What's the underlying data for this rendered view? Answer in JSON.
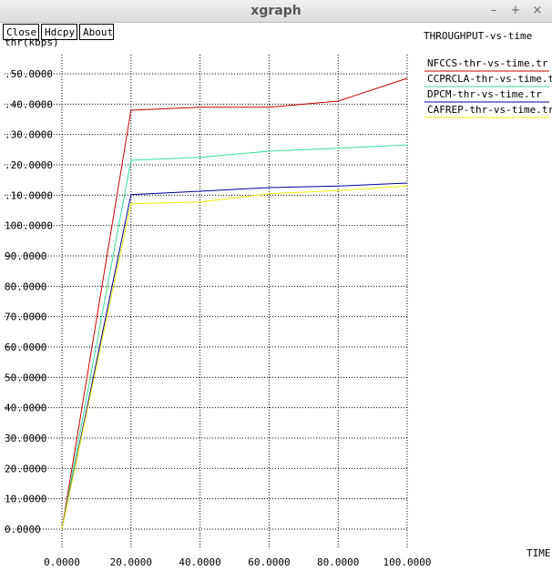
{
  "window": {
    "title": "xgraph",
    "min_glyph": "–",
    "max_glyph": "+",
    "close_glyph": "×"
  },
  "toolbar": {
    "close_label": "Close",
    "hdcpy_label": "Hdcpy",
    "about_label": "About"
  },
  "chart_data": {
    "type": "line",
    "title": "THROUGHPUT-vs-time",
    "xlabel": "TIME",
    "ylabel": "thr(kbps)",
    "xlim": [
      0,
      100
    ],
    "ylim": [
      0,
      150
    ],
    "grid": true,
    "legend_placement": "top-right",
    "x_ticks": [
      "0.0000",
      "20.0000",
      "40.0000",
      "60.0000",
      "80.0000",
      "100.0000"
    ],
    "y_ticks": [
      "0.0000",
      "10.0000",
      "20.0000",
      "30.0000",
      "40.0000",
      "50.0000",
      "60.0000",
      "70.0000",
      "80.0000",
      "90.0000",
      "100.0000",
      ".10.0000",
      ".20.0000",
      ".30.0000",
      ".40.0000",
      ".50.0000"
    ],
    "series": [
      {
        "name": "NFCCS-thr-vs-time.tr",
        "color": "#cc0000",
        "x": [
          0,
          20,
          40,
          60,
          80,
          100
        ],
        "y": [
          0,
          138,
          139,
          139,
          141,
          148.5
        ]
      },
      {
        "name": "CCPRCLA-thr-vs-time.tr",
        "color": "#33dd99",
        "x": [
          0,
          20,
          40,
          60,
          80,
          100
        ],
        "y": [
          0,
          121.5,
          122.5,
          124.5,
          125.5,
          126.5
        ]
      },
      {
        "name": "DPCM-thr-vs-time.tr",
        "color": "#000099",
        "x": [
          0,
          20,
          40,
          60,
          80,
          100
        ],
        "y": [
          0,
          110.2,
          111.3,
          112.5,
          113,
          114
        ]
      },
      {
        "name": "CAFREP-thr-vs-time.tr",
        "color": "#eeee00",
        "x": [
          0,
          20,
          40,
          60,
          80,
          100
        ],
        "y": [
          0,
          107.2,
          107.8,
          110.5,
          111.5,
          113
        ]
      }
    ]
  }
}
